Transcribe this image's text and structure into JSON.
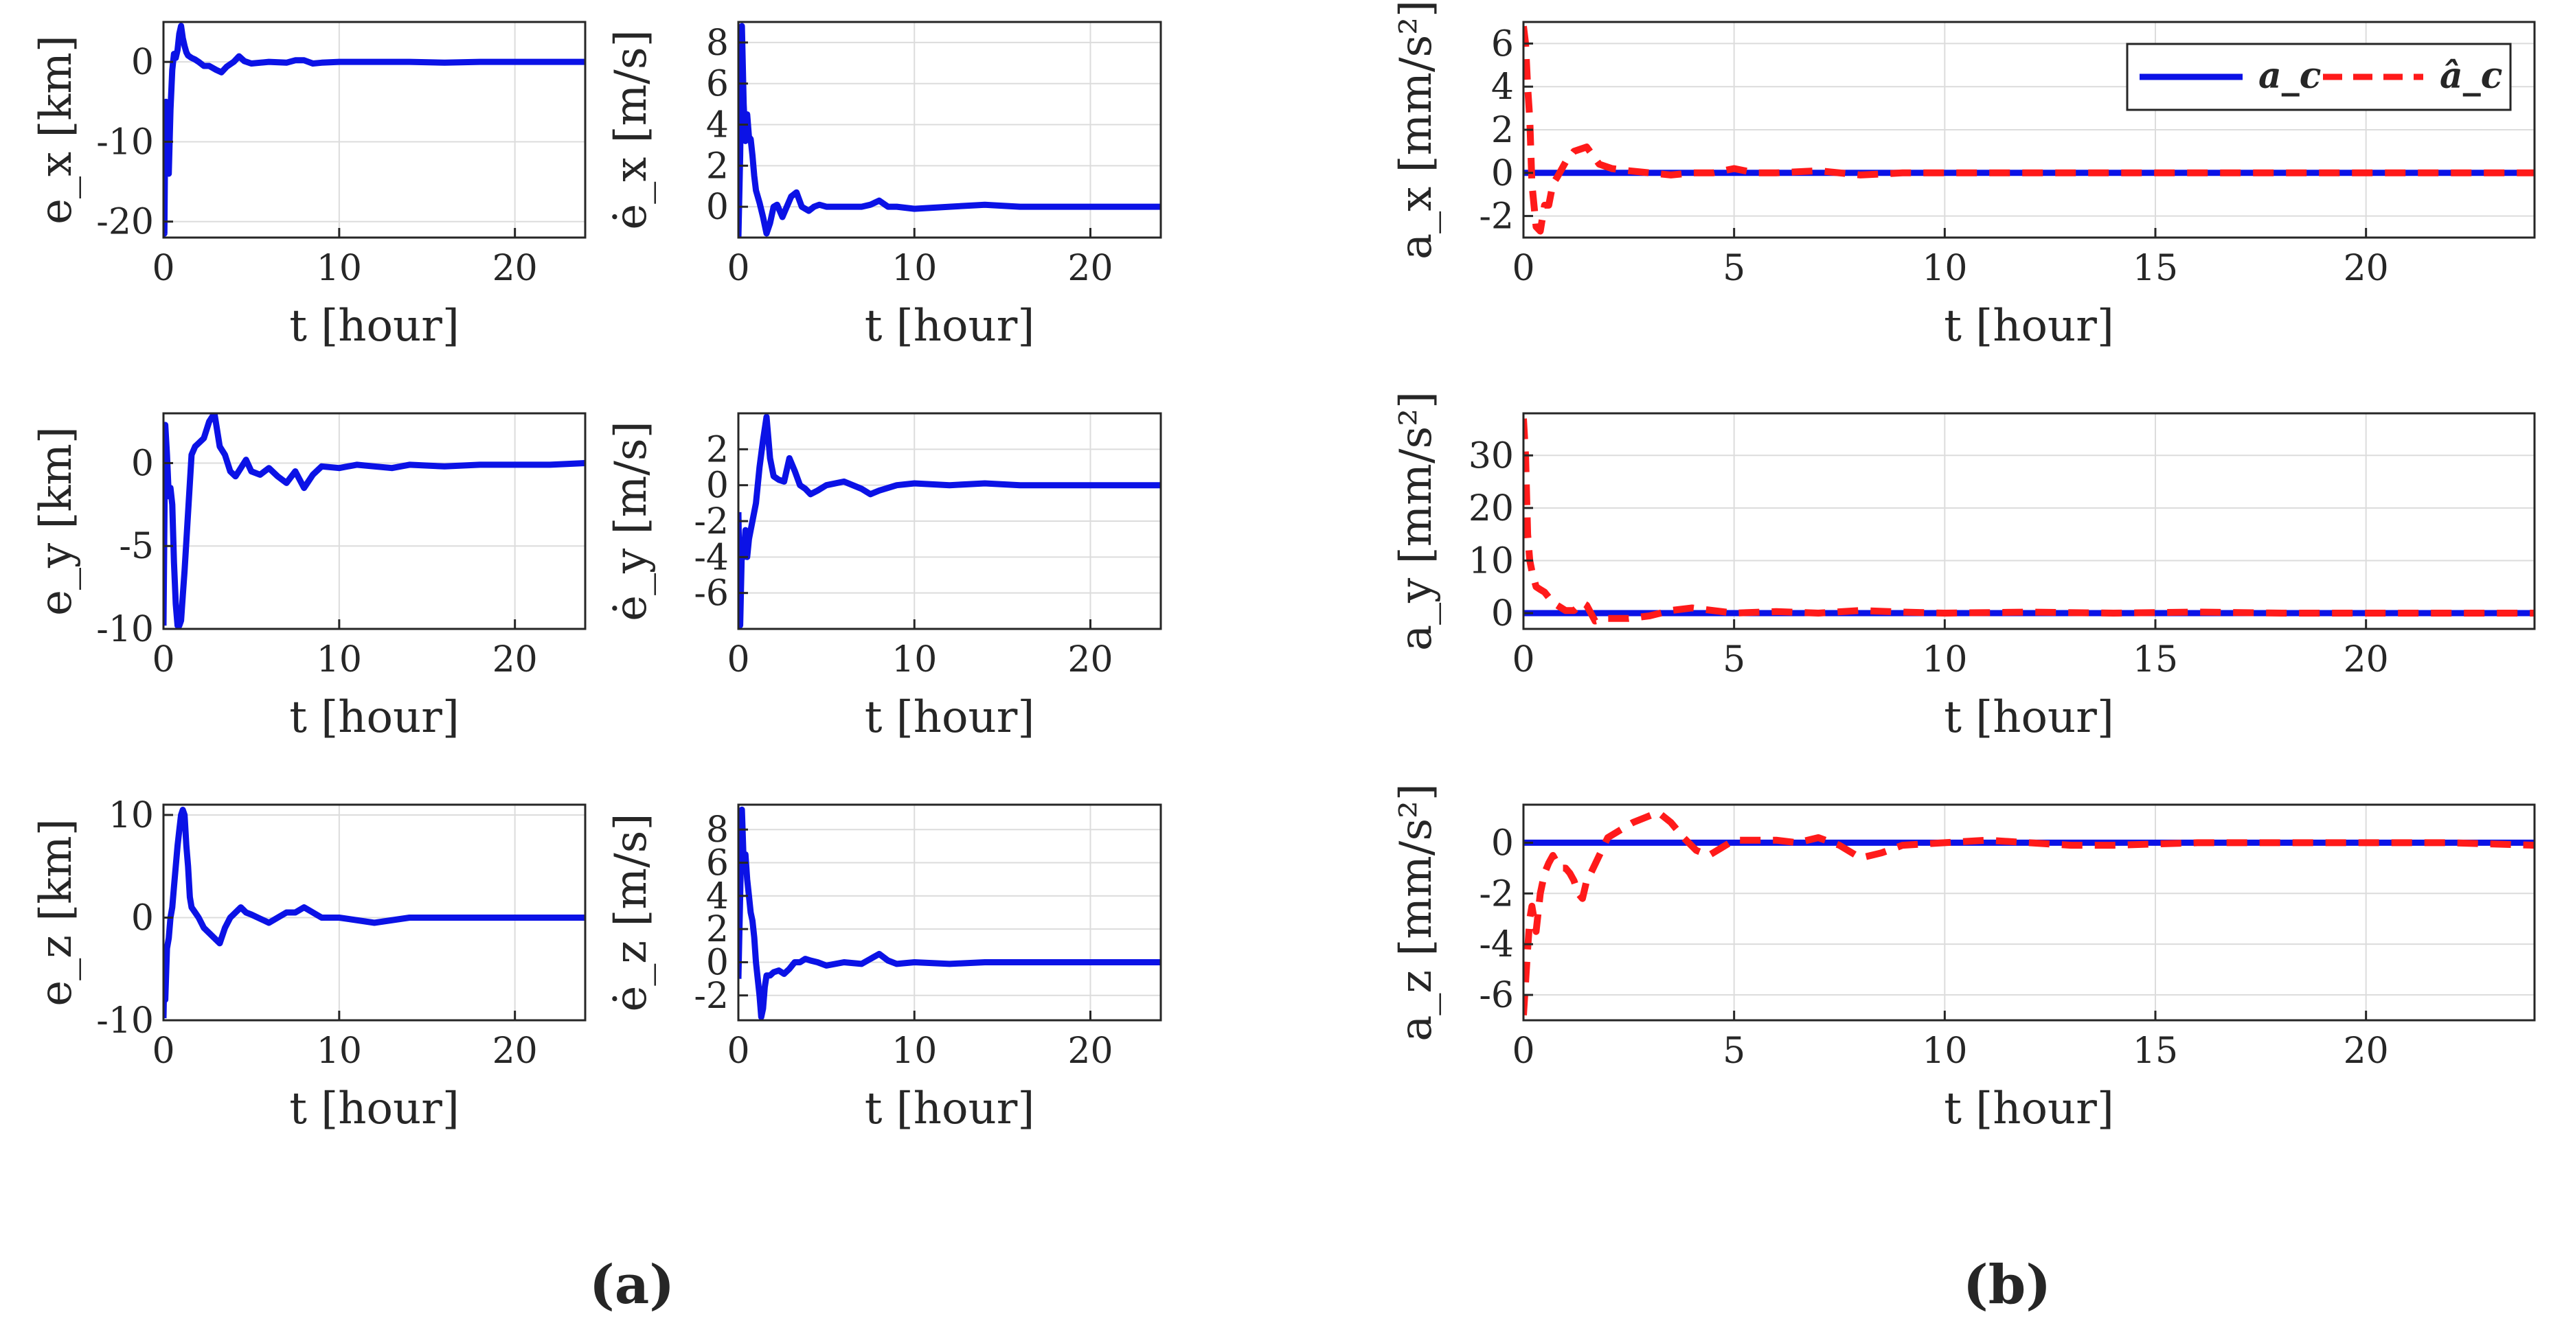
{
  "colors": {
    "line": "#0b12e6",
    "estimate": "#ff1a1a",
    "grid": "#dcdcdc",
    "frame": "#262626"
  },
  "captions": {
    "a": "(a)",
    "b": "(b)"
  },
  "legend": {
    "truth": "a_c",
    "estimate": "â_c"
  },
  "chart_data": [
    {
      "id": "ex",
      "type": "line",
      "title": "",
      "xlabel": "t [hour]",
      "ylabel": "e_x [km]",
      "xlim": [
        0,
        24
      ],
      "ylim": [
        -22,
        5
      ],
      "xticks": [
        0,
        10,
        20
      ],
      "yticks": [
        0,
        -10,
        -20
      ],
      "xtick_labels": [
        "0",
        "10",
        "20"
      ],
      "ytick_labels": [
        "0",
        "-10",
        "-20"
      ],
      "series": [
        {
          "name": "e_x",
          "x": [
            0,
            0.05,
            0.1,
            0.15,
            0.2,
            0.3,
            0.4,
            0.5,
            0.6,
            0.7,
            0.8,
            0.9,
            1.0,
            1.1,
            1.2,
            1.3,
            1.4,
            1.6,
            1.8,
            2.0,
            2.3,
            2.6,
            3.0,
            3.3,
            3.6,
            4.0,
            4.3,
            4.6,
            5.0,
            6.0,
            7.0,
            7.5,
            8.0,
            8.5,
            9.0,
            10,
            12,
            14,
            16,
            18,
            20,
            22,
            24
          ],
          "values": [
            -5,
            -21.5,
            -8,
            -5,
            -6,
            -14,
            -6,
            -1,
            1,
            0.5,
            1.5,
            3.5,
            4.5,
            3,
            2,
            1.2,
            0.8,
            0.5,
            0.3,
            0,
            -0.5,
            -0.5,
            -1,
            -1.3,
            -0.6,
            0,
            0.7,
            0.1,
            -0.2,
            0,
            -0.1,
            0.2,
            0.2,
            -0.2,
            -0.1,
            0,
            0,
            0,
            -0.1,
            0,
            0,
            0,
            0
          ]
        }
      ]
    },
    {
      "id": "ex-dot",
      "type": "line",
      "title": "",
      "xlabel": "t [hour]",
      "ylabel": "ė_x [m/s]",
      "xlim": [
        0,
        24
      ],
      "ylim": [
        -1.5,
        9
      ],
      "xticks": [
        0,
        10,
        20
      ],
      "yticks": [
        0,
        2,
        4,
        6,
        8
      ],
      "xtick_labels": [
        "0",
        "10",
        "20"
      ],
      "ytick_labels": [
        "0",
        "2",
        "4",
        "6",
        "8"
      ],
      "series": [
        {
          "name": "ė_x",
          "x": [
            0,
            0.1,
            0.2,
            0.3,
            0.4,
            0.5,
            0.6,
            0.7,
            0.8,
            0.9,
            1.0,
            1.2,
            1.4,
            1.6,
            1.8,
            2.0,
            2.2,
            2.5,
            2.7,
            3.0,
            3.3,
            3.6,
            4.0,
            4.3,
            4.6,
            5.0,
            5.5,
            6,
            7,
            7.5,
            8.0,
            8.5,
            9,
            10,
            12,
            14,
            16,
            18,
            20,
            22,
            24
          ],
          "values": [
            -1.5,
            2.5,
            8.8,
            5,
            3.2,
            4.5,
            3.4,
            3.3,
            2.5,
            1.5,
            0.8,
            0.2,
            -0.5,
            -1.3,
            -0.8,
            0,
            0.1,
            -0.5,
            -0.1,
            0.5,
            0.7,
            0,
            -0.2,
            0,
            0.1,
            0,
            0,
            0,
            0,
            0.1,
            0.3,
            0,
            0,
            -0.1,
            0,
            0.1,
            0,
            0,
            0,
            0,
            0
          ]
        }
      ]
    },
    {
      "id": "ax",
      "type": "line",
      "title": "",
      "xlabel": "t [hour]",
      "ylabel": "a_x [mm/s²]",
      "xlim": [
        0,
        24
      ],
      "ylim": [
        -3,
        7
      ],
      "xticks": [
        0,
        5,
        10,
        15,
        20
      ],
      "yticks": [
        6,
        4,
        2,
        0,
        -2
      ],
      "xtick_labels": [
        "0",
        "5",
        "10",
        "15",
        "20"
      ],
      "ytick_labels": [
        "6",
        "4",
        "2",
        "0",
        "-2"
      ],
      "series": [
        {
          "name": "a_c",
          "style": "solid",
          "x": [
            0,
            24
          ],
          "values": [
            0,
            0
          ]
        },
        {
          "name": "â_c",
          "style": "dashed",
          "x": [
            0,
            0.05,
            0.1,
            0.15,
            0.2,
            0.3,
            0.4,
            0.5,
            0.6,
            0.7,
            0.8,
            1.0,
            1.2,
            1.5,
            1.8,
            2.1,
            2.5,
            3,
            3.5,
            4,
            4.5,
            5,
            5.5,
            6,
            7,
            8,
            9,
            10,
            12,
            14,
            16,
            18,
            20,
            22,
            24
          ],
          "values": [
            6.8,
            6,
            4,
            2.5,
            -0.5,
            -2.5,
            -2.7,
            -1.5,
            -1.5,
            -0.5,
            -0.2,
            0.5,
            1.0,
            1.2,
            0.4,
            0.2,
            0.1,
            0.0,
            -0.1,
            0.0,
            0.0,
            0.2,
            0.0,
            0.0,
            0.1,
            -0.1,
            0.0,
            0.0,
            0.0,
            0.0,
            0.0,
            0.0,
            0.0,
            0.0,
            0.0
          ]
        }
      ]
    },
    {
      "id": "ey",
      "type": "line",
      "title": "",
      "xlabel": "t [hour]",
      "ylabel": "e_y [km]",
      "xlim": [
        0,
        24
      ],
      "ylim": [
        -10,
        3
      ],
      "xticks": [
        0,
        10,
        20
      ],
      "yticks": [
        0,
        -5,
        -10
      ],
      "xtick_labels": [
        "0",
        "10",
        "20"
      ],
      "ytick_labels": [
        "0",
        "-5",
        "-10"
      ],
      "series": [
        {
          "name": "e_y",
          "x": [
            0,
            0.1,
            0.2,
            0.3,
            0.4,
            0.5,
            0.6,
            0.7,
            0.8,
            0.9,
            1.0,
            1.1,
            1.2,
            1.4,
            1.6,
            1.8,
            2.0,
            2.3,
            2.6,
            2.9,
            3.2,
            3.5,
            3.8,
            4.1,
            4.4,
            4.7,
            5,
            5.5,
            6,
            6.5,
            7,
            7.5,
            8,
            8.5,
            9,
            10,
            11,
            12,
            13,
            14,
            16,
            18,
            20,
            22,
            24
          ],
          "values": [
            -9.8,
            2.3,
            0.5,
            -2,
            -1.5,
            -2.5,
            -6,
            -8.5,
            -9.8,
            -9.8,
            -9.5,
            -8,
            -6.5,
            -3,
            0.5,
            1,
            1.2,
            1.5,
            2.5,
            3,
            1,
            0.5,
            -0.5,
            -0.8,
            -0.3,
            0.2,
            -0.5,
            -0.7,
            -0.3,
            -0.8,
            -1.2,
            -0.5,
            -1.5,
            -0.7,
            -0.2,
            -0.3,
            -0.1,
            -0.2,
            -0.3,
            -0.1,
            -0.2,
            -0.1,
            -0.1,
            -0.1,
            0
          ]
        }
      ]
    },
    {
      "id": "ey-dot",
      "type": "line",
      "title": "",
      "xlabel": "t [hour]",
      "ylabel": "ė_y [m/s]",
      "xlim": [
        0,
        24
      ],
      "ylim": [
        -8,
        4
      ],
      "xticks": [
        0,
        10,
        20
      ],
      "yticks": [
        2,
        0,
        -2,
        -4,
        -6
      ],
      "xtick_labels": [
        "0",
        "10",
        "20"
      ],
      "ytick_labels": [
        "2",
        "0",
        "-2",
        "-4",
        "-6"
      ],
      "series": [
        {
          "name": "ė_y",
          "x": [
            0,
            0.1,
            0.2,
            0.3,
            0.4,
            0.5,
            0.6,
            0.7,
            0.8,
            1.0,
            1.2,
            1.4,
            1.6,
            1.8,
            2.0,
            2.3,
            2.6,
            2.9,
            3.2,
            3.5,
            3.8,
            4.1,
            4.5,
            5,
            6,
            7,
            7.5,
            8,
            9,
            10,
            12,
            14,
            16,
            18,
            20,
            22,
            24
          ],
          "values": [
            -1.5,
            -7.8,
            -3.5,
            -4,
            -2.5,
            -4,
            -3,
            -2.5,
            -2,
            -1,
            1,
            2.5,
            3.8,
            1.5,
            0.5,
            0.3,
            0.2,
            1.5,
            0.8,
            0,
            -0.2,
            -0.5,
            -0.3,
            0,
            0.2,
            -0.2,
            -0.5,
            -0.3,
            0,
            0.1,
            0,
            0.1,
            0,
            0,
            0,
            0,
            0
          ]
        }
      ]
    },
    {
      "id": "ay",
      "type": "line",
      "title": "",
      "xlabel": "t [hour]",
      "ylabel": "a_y [mm/s²]",
      "xlim": [
        0,
        24
      ],
      "ylim": [
        -3,
        38
      ],
      "xticks": [
        0,
        5,
        10,
        15,
        20
      ],
      "yticks": [
        30,
        20,
        10,
        0
      ],
      "xtick_labels": [
        "0",
        "5",
        "10",
        "15",
        "20"
      ],
      "ytick_labels": [
        "30",
        "20",
        "10",
        "0"
      ],
      "series": [
        {
          "name": "a_c",
          "style": "solid",
          "x": [
            0,
            24
          ],
          "values": [
            0,
            0
          ]
        },
        {
          "name": "â_c",
          "style": "dashed",
          "x": [
            0,
            0.05,
            0.1,
            0.15,
            0.2,
            0.3,
            0.4,
            0.5,
            0.6,
            0.7,
            0.8,
            0.9,
            1.0,
            1.2,
            1.4,
            1.5,
            1.7,
            2.0,
            2.5,
            3.0,
            3.5,
            4.0,
            5,
            6,
            7,
            8,
            9,
            10,
            12,
            14,
            16,
            18,
            20,
            22,
            24
          ],
          "values": [
            37,
            30,
            15,
            10,
            8,
            5,
            4.5,
            4,
            3,
            2,
            1.5,
            1,
            0.5,
            0.5,
            2,
            1.5,
            -1.5,
            -1,
            -1,
            -0.5,
            0.5,
            1,
            0,
            0.3,
            0,
            0.5,
            0.2,
            0,
            0.2,
            0,
            0.2,
            0,
            0,
            0,
            0
          ]
        }
      ]
    },
    {
      "id": "ez",
      "type": "line",
      "title": "",
      "xlabel": "t [hour]",
      "ylabel": "e_z [km]",
      "xlim": [
        0,
        24
      ],
      "ylim": [
        -10,
        11
      ],
      "xticks": [
        0,
        10,
        20
      ],
      "yticks": [
        10,
        0,
        -10
      ],
      "xtick_labels": [
        "0",
        "10",
        "20"
      ],
      "ytick_labels": [
        "10",
        "0",
        "-10"
      ],
      "series": [
        {
          "name": "e_z",
          "x": [
            0,
            0.05,
            0.1,
            0.2,
            0.3,
            0.4,
            0.5,
            0.6,
            0.7,
            0.8,
            0.9,
            1.0,
            1.1,
            1.2,
            1.3,
            1.4,
            1.5,
            1.6,
            1.8,
            2.0,
            2.3,
            2.6,
            2.9,
            3.2,
            3.5,
            3.8,
            4.1,
            4.4,
            4.7,
            5,
            6,
            7,
            7.5,
            8,
            8.5,
            9,
            10,
            12,
            14,
            16,
            18,
            20,
            22,
            24
          ],
          "values": [
            -9.8,
            -5,
            -8,
            -3,
            -2,
            0,
            1,
            3,
            5,
            7,
            8.5,
            10,
            10.5,
            10,
            7,
            5,
            2,
            1,
            0.5,
            0,
            -1,
            -1.5,
            -2,
            -2.5,
            -1,
            0,
            0.5,
            1,
            0.5,
            0.3,
            -0.5,
            0.5,
            0.5,
            1,
            0.5,
            0,
            0,
            -0.5,
            0,
            0,
            0,
            0,
            0,
            0
          ]
        }
      ]
    },
    {
      "id": "ez-dot",
      "type": "line",
      "title": "",
      "xlabel": "t [hour]",
      "ylabel": "ė_z [m/s]",
      "xlim": [
        0,
        24
      ],
      "ylim": [
        -3.5,
        9.5
      ],
      "xticks": [
        0,
        10,
        20
      ],
      "yticks": [
        8,
        6,
        4,
        2,
        0,
        -2
      ],
      "xtick_labels": [
        "0",
        "10",
        "20"
      ],
      "ytick_labels": [
        "8",
        "6",
        "4",
        "2",
        "0",
        "-2"
      ],
      "series": [
        {
          "name": "ė_z",
          "x": [
            0,
            0.1,
            0.2,
            0.3,
            0.4,
            0.5,
            0.6,
            0.7,
            0.8,
            0.9,
            1.0,
            1.1,
            1.2,
            1.3,
            1.4,
            1.5,
            1.6,
            1.8,
            2.0,
            2.3,
            2.6,
            2.9,
            3.2,
            3.5,
            3.8,
            4.1,
            4.5,
            5,
            6,
            7,
            7.5,
            8,
            8.5,
            9,
            10,
            12,
            14,
            16,
            18,
            20,
            22,
            24
          ],
          "values": [
            -1,
            4,
            9.2,
            6,
            6.5,
            5,
            4,
            3,
            2.5,
            1.5,
            0,
            -1,
            -2,
            -3.3,
            -2.8,
            -1.5,
            -0.8,
            -0.8,
            -0.6,
            -0.5,
            -0.7,
            -0.4,
            0,
            0,
            0.2,
            0.1,
            0,
            -0.2,
            0,
            -0.1,
            0.2,
            0.5,
            0.1,
            -0.1,
            0,
            -0.1,
            0,
            0,
            0,
            0,
            0,
            0
          ]
        }
      ]
    },
    {
      "id": "az",
      "type": "line",
      "title": "",
      "xlabel": "t [hour]",
      "ylabel": "a_z [mm/s²]",
      "xlim": [
        0,
        24
      ],
      "ylim": [
        -7,
        1.5
      ],
      "xticks": [
        0,
        5,
        10,
        15,
        20
      ],
      "yticks": [
        0,
        -2,
        -4,
        -6
      ],
      "xtick_labels": [
        "0",
        "5",
        "10",
        "15",
        "20"
      ],
      "ytick_labels": [
        "0",
        "-2",
        "-4",
        "-6"
      ],
      "series": [
        {
          "name": "a_c",
          "style": "solid",
          "x": [
            0,
            24
          ],
          "values": [
            0,
            0
          ]
        },
        {
          "name": "â_c",
          "style": "dashed",
          "x": [
            0,
            0.05,
            0.1,
            0.15,
            0.2,
            0.3,
            0.4,
            0.5,
            0.6,
            0.7,
            0.8,
            0.9,
            1.0,
            1.1,
            1.2,
            1.3,
            1.4,
            1.5,
            1.6,
            1.8,
            2.0,
            2.3,
            2.6,
            2.9,
            3.2,
            3.5,
            3.8,
            4.1,
            4.4,
            4.7,
            5,
            5.5,
            6,
            6.5,
            7,
            7.5,
            8,
            8.5,
            9,
            10,
            11,
            12,
            13,
            14,
            16,
            18,
            20,
            22,
            24
          ],
          "values": [
            -6.8,
            -5.5,
            -4.2,
            -3,
            -2.5,
            -3.5,
            -2,
            -1.2,
            -0.8,
            -0.5,
            -0.8,
            -1,
            -1,
            -1.2,
            -1.5,
            -2,
            -2.2,
            -1.5,
            -1.2,
            -0.5,
            0.2,
            0.5,
            0.8,
            1.0,
            1.2,
            0.8,
            0.2,
            -0.3,
            -0.5,
            -0.2,
            0.1,
            0.1,
            0.1,
            0,
            0.2,
            -0.1,
            -0.6,
            -0.4,
            -0.1,
            0,
            0.1,
            0,
            -0.1,
            -0.1,
            0,
            0,
            0,
            0,
            -0.1
          ]
        }
      ]
    }
  ]
}
